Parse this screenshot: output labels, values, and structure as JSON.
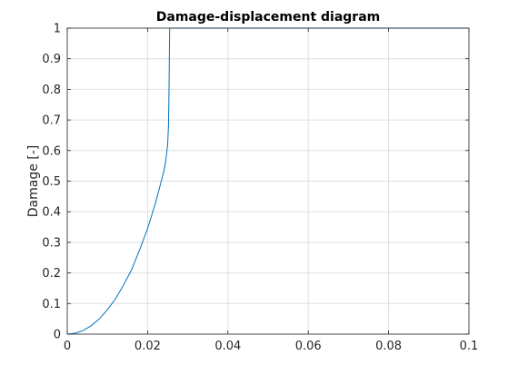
{
  "chart_data": {
    "type": "line",
    "title": "Damage-displacement diagram",
    "xlabel": "",
    "ylabel": "Damage [-]",
    "xlim": [
      0,
      0.1
    ],
    "ylim": [
      0,
      1
    ],
    "xticks": [
      0,
      0.02,
      0.04,
      0.06,
      0.08,
      0.1
    ],
    "xtick_labels": [
      "0",
      "0.02",
      "0.04",
      "0.06",
      "0.08",
      "0.1"
    ],
    "yticks": [
      0,
      0.1,
      0.2,
      0.3,
      0.4,
      0.5,
      0.6,
      0.7,
      0.8,
      0.9,
      1
    ],
    "ytick_labels": [
      "0",
      "0.1",
      "0.2",
      "0.3",
      "0.4",
      "0.5",
      "0.6",
      "0.7",
      "0.8",
      "0.9",
      "1"
    ],
    "grid": true,
    "series": [
      {
        "color": "#0072bd",
        "x": [
          0,
          0.002,
          0.004,
          0.006,
          0.008,
          0.01,
          0.012,
          0.014,
          0.016,
          0.018,
          0.02,
          0.022,
          0.024,
          0.0245,
          0.025,
          0.0252,
          0.0253,
          0.0255,
          0.1
        ],
        "y": [
          0,
          0.003,
          0.012,
          0.028,
          0.05,
          0.08,
          0.115,
          0.16,
          0.21,
          0.275,
          0.345,
          0.43,
          0.53,
          0.565,
          0.62,
          0.68,
          0.76,
          1.0,
          1.0
        ]
      }
    ]
  }
}
